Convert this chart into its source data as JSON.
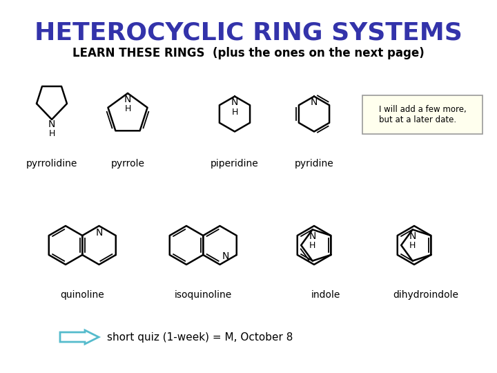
{
  "title": "HETEROCYCLIC RING SYSTEMS",
  "subtitle": "LEARN THESE RINGS  (plus the ones on the next page)",
  "title_color": "#3333AA",
  "title_fontsize": 26,
  "subtitle_fontsize": 12,
  "bg_color": "#FFFFFF",
  "ring_color": "#000000",
  "label_fontsize": 10,
  "note_text": "I will add a few more,\nbut at a later date.",
  "note_bg": "#FFFFEE",
  "note_border": "#999999",
  "quiz_text": "short quiz (1-week) = M, October 8",
  "quiz_fontsize": 11,
  "arrow_color": "#55BBCC"
}
